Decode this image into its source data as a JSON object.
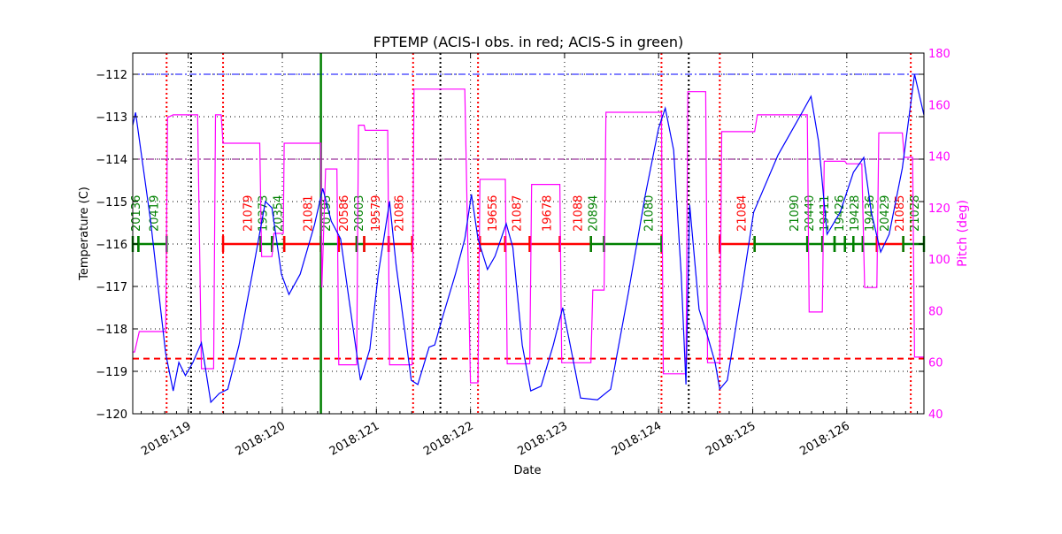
{
  "chart_data": {
    "type": "line",
    "title": "FPTEMP (ACIS-I obs. in red; ACIS-S in green)",
    "xlabel": "Date",
    "ylabel": "Temperature (C)",
    "y2label": "Pitch (deg)",
    "xlim": [
      118.41,
      126.82
    ],
    "ylim": [
      -120,
      -111.5
    ],
    "y2lim": [
      40,
      180
    ],
    "x_ticks": [
      119,
      120,
      121,
      122,
      123,
      124,
      125,
      126
    ],
    "x_tick_labels": [
      "2018:119",
      "2018:120",
      "2018:121",
      "2018:122",
      "2018:123",
      "2018:124",
      "2018:125",
      "2018:126"
    ],
    "y_ticks": [
      -120,
      -119,
      -118,
      -117,
      -116,
      -115,
      -114,
      -113,
      -112
    ],
    "y2_ticks": [
      40,
      60,
      80,
      100,
      120,
      140,
      160,
      180
    ],
    "grid": true,
    "colors": {
      "temperature": "#0000ff",
      "pitch": "#ff00ff",
      "acis_i": "#ff0000",
      "acis_s": "#008000",
      "limit_high": "#0000ff",
      "limit_mid": "#800080",
      "limit_low": "#ff0000",
      "right_axis": "#ff00ff"
    },
    "hlines": [
      {
        "y": -112,
        "style": "dashdot",
        "color": "#0000ff"
      },
      {
        "y": -114,
        "style": "dashdot",
        "color": "#800080"
      },
      {
        "y": -118.7,
        "style": "dashed",
        "color": "#ff0000"
      }
    ],
    "vlines": [
      {
        "x": 118.77,
        "color": "#ff0000",
        "style": "dotted"
      },
      {
        "x": 119.37,
        "color": "#ff0000",
        "style": "dotted"
      },
      {
        "x": 121.39,
        "color": "#ff0000",
        "style": "dotted"
      },
      {
        "x": 122.08,
        "color": "#ff0000",
        "style": "dotted"
      },
      {
        "x": 124.03,
        "color": "#ff0000",
        "style": "dotted"
      },
      {
        "x": 124.65,
        "color": "#ff0000",
        "style": "dotted"
      },
      {
        "x": 126.68,
        "color": "#ff0000",
        "style": "dotted"
      },
      {
        "x": 119.03,
        "color": "#000000",
        "style": "dotted"
      },
      {
        "x": 121.68,
        "color": "#000000",
        "style": "dotted"
      },
      {
        "x": 124.32,
        "color": "#000000",
        "style": "dotted"
      },
      {
        "x": 120.41,
        "color": "#008000",
        "style": "solid"
      }
    ],
    "temperature": [
      [
        118.41,
        -113.2
      ],
      [
        118.44,
        -112.9
      ],
      [
        118.6,
        -115.46
      ],
      [
        118.76,
        -118.58
      ],
      [
        118.84,
        -119.46
      ],
      [
        118.9,
        -118.79
      ],
      [
        118.97,
        -119.1
      ],
      [
        119.05,
        -118.79
      ],
      [
        119.14,
        -118.33
      ],
      [
        119.24,
        -119.73
      ],
      [
        119.33,
        -119.52
      ],
      [
        119.42,
        -119.42
      ],
      [
        119.54,
        -118.38
      ],
      [
        119.68,
        -116.71
      ],
      [
        119.82,
        -115.0
      ],
      [
        119.89,
        -115.15
      ],
      [
        119.99,
        -116.71
      ],
      [
        120.07,
        -117.19
      ],
      [
        120.19,
        -116.71
      ],
      [
        120.34,
        -115.56
      ],
      [
        120.43,
        -114.69
      ],
      [
        120.52,
        -115.46
      ],
      [
        120.62,
        -115.88
      ],
      [
        120.71,
        -117.33
      ],
      [
        120.83,
        -119.21
      ],
      [
        120.93,
        -118.48
      ],
      [
        121.02,
        -116.71
      ],
      [
        121.14,
        -115.0
      ],
      [
        121.21,
        -116.5
      ],
      [
        121.37,
        -119.21
      ],
      [
        121.44,
        -119.31
      ],
      [
        121.56,
        -118.43
      ],
      [
        121.62,
        -118.38
      ],
      [
        121.7,
        -117.75
      ],
      [
        121.84,
        -116.71
      ],
      [
        121.94,
        -115.88
      ],
      [
        122.01,
        -114.83
      ],
      [
        122.08,
        -115.88
      ],
      [
        122.18,
        -116.6
      ],
      [
        122.26,
        -116.29
      ],
      [
        122.38,
        -115.52
      ],
      [
        122.45,
        -116.08
      ],
      [
        122.55,
        -118.38
      ],
      [
        122.64,
        -119.46
      ],
      [
        122.75,
        -119.35
      ],
      [
        122.88,
        -118.38
      ],
      [
        122.98,
        -117.5
      ],
      [
        123.06,
        -118.38
      ],
      [
        123.17,
        -119.63
      ],
      [
        123.35,
        -119.67
      ],
      [
        123.49,
        -119.42
      ],
      [
        123.68,
        -117.13
      ],
      [
        123.86,
        -114.83
      ],
      [
        124.0,
        -113.27
      ],
      [
        124.07,
        -112.8
      ],
      [
        124.16,
        -113.79
      ],
      [
        124.24,
        -116.71
      ],
      [
        124.29,
        -119.31
      ],
      [
        124.33,
        -115.08
      ],
      [
        124.43,
        -117.54
      ],
      [
        124.52,
        -118.17
      ],
      [
        124.6,
        -118.79
      ],
      [
        124.65,
        -119.42
      ],
      [
        124.73,
        -119.21
      ],
      [
        124.88,
        -117.13
      ],
      [
        125.01,
        -115.25
      ],
      [
        125.27,
        -113.9
      ],
      [
        125.51,
        -112.96
      ],
      [
        125.62,
        -112.52
      ],
      [
        125.7,
        -113.58
      ],
      [
        125.79,
        -115.77
      ],
      [
        125.93,
        -115.25
      ],
      [
        126.07,
        -114.31
      ],
      [
        126.18,
        -113.96
      ],
      [
        126.26,
        -115.25
      ],
      [
        126.36,
        -116.19
      ],
      [
        126.45,
        -115.77
      ],
      [
        126.59,
        -114.21
      ],
      [
        126.72,
        -112.0
      ],
      [
        126.82,
        -112.96
      ]
    ],
    "pitch": [
      [
        118.41,
        64
      ],
      [
        118.43,
        64
      ],
      [
        118.48,
        71.9
      ],
      [
        118.76,
        71.9
      ],
      [
        118.78,
        155
      ],
      [
        118.84,
        156
      ],
      [
        119.1,
        156
      ],
      [
        119.14,
        57.5
      ],
      [
        119.27,
        57.5
      ],
      [
        119.29,
        156
      ],
      [
        119.35,
        156
      ],
      [
        119.37,
        145
      ],
      [
        119.76,
        145
      ],
      [
        119.78,
        101
      ],
      [
        119.89,
        101
      ],
      [
        119.91,
        110
      ],
      [
        120.01,
        110
      ],
      [
        120.02,
        145
      ],
      [
        120.41,
        145
      ],
      [
        120.42,
        89
      ],
      [
        120.46,
        135
      ],
      [
        120.58,
        135
      ],
      [
        120.6,
        59
      ],
      [
        120.79,
        59
      ],
      [
        120.81,
        152
      ],
      [
        120.87,
        152
      ],
      [
        120.88,
        150
      ],
      [
        121.12,
        150
      ],
      [
        121.14,
        59
      ],
      [
        121.38,
        59
      ],
      [
        121.4,
        166
      ],
      [
        121.94,
        166
      ],
      [
        122.0,
        52
      ],
      [
        122.08,
        52
      ],
      [
        122.1,
        131
      ],
      [
        122.37,
        131
      ],
      [
        122.39,
        59.4
      ],
      [
        122.63,
        59.4
      ],
      [
        122.65,
        129
      ],
      [
        122.95,
        129
      ],
      [
        122.97,
        59.8
      ],
      [
        123.28,
        59.8
      ],
      [
        123.3,
        88
      ],
      [
        123.42,
        88
      ],
      [
        123.44,
        157
      ],
      [
        124.03,
        157
      ],
      [
        124.05,
        55.5
      ],
      [
        124.29,
        55.5
      ],
      [
        124.31,
        165
      ],
      [
        124.5,
        165
      ],
      [
        124.52,
        59.8
      ],
      [
        124.65,
        59.8
      ],
      [
        124.67,
        149.5
      ],
      [
        125.02,
        149.5
      ],
      [
        125.05,
        156
      ],
      [
        125.58,
        156
      ],
      [
        125.6,
        79.5
      ],
      [
        125.74,
        79.5
      ],
      [
        125.76,
        138
      ],
      [
        125.98,
        138
      ],
      [
        126.0,
        137
      ],
      [
        126.16,
        137
      ],
      [
        126.19,
        89
      ],
      [
        126.32,
        89
      ],
      [
        126.34,
        149
      ],
      [
        126.59,
        149
      ],
      [
        126.61,
        139.5
      ],
      [
        126.7,
        139.5
      ],
      [
        126.72,
        62
      ],
      [
        126.82,
        62
      ]
    ],
    "observations_level": -116,
    "observations": [
      {
        "obsid": "20136",
        "instrument": "ACIS-S",
        "start": 118.41,
        "stop": 118.47
      },
      {
        "obsid": "20419",
        "instrument": "ACIS-S",
        "start": 118.47,
        "stop": 118.77
      },
      {
        "obsid": "21079",
        "instrument": "ACIS-I",
        "start": 119.37,
        "stop": 119.77
      },
      {
        "obsid": "19373",
        "instrument": "ACIS-S",
        "start": 119.77,
        "stop": 119.89
      },
      {
        "obsid": "20354",
        "instrument": "ACIS-S",
        "start": 119.89,
        "stop": 120.02
      },
      {
        "obsid": "21081",
        "instrument": "ACIS-I",
        "start": 120.02,
        "stop": 120.41
      },
      {
        "obsid": "20195",
        "instrument": "ACIS-S",
        "start": 120.41,
        "stop": 120.6
      },
      {
        "obsid": "20586",
        "instrument": "ACIS-I",
        "start": 120.6,
        "stop": 120.79
      },
      {
        "obsid": "20603",
        "instrument": "ACIS-S",
        "start": 120.79,
        "stop": 120.87
      },
      {
        "obsid": "19579",
        "instrument": "ACIS-I",
        "start": 120.87,
        "stop": 121.13
      },
      {
        "obsid": "21086",
        "instrument": "ACIS-I",
        "start": 121.13,
        "stop": 121.38
      },
      {
        "obsid": "19656",
        "instrument": "ACIS-I",
        "start": 122.1,
        "stop": 122.37
      },
      {
        "obsid": "21087",
        "instrument": "ACIS-I",
        "start": 122.37,
        "stop": 122.63
      },
      {
        "obsid": "19678",
        "instrument": "ACIS-I",
        "start": 122.63,
        "stop": 122.95
      },
      {
        "obsid": "21088",
        "instrument": "ACIS-I",
        "start": 122.95,
        "stop": 123.28
      },
      {
        "obsid": "20894",
        "instrument": "ACIS-S",
        "start": 123.28,
        "stop": 123.42
      },
      {
        "obsid": "21080",
        "instrument": "ACIS-S",
        "start": 123.42,
        "stop": 124.03
      },
      {
        "obsid": "21084",
        "instrument": "ACIS-I",
        "start": 124.65,
        "stop": 125.02
      },
      {
        "obsid": "21090",
        "instrument": "ACIS-S",
        "start": 125.02,
        "stop": 125.58
      },
      {
        "obsid": "20440",
        "instrument": "ACIS-S",
        "start": 125.58,
        "stop": 125.74
      },
      {
        "obsid": "19411",
        "instrument": "ACIS-S",
        "start": 125.74,
        "stop": 125.87
      },
      {
        "obsid": "19426",
        "instrument": "ACIS-S",
        "start": 125.87,
        "stop": 125.98
      },
      {
        "obsid": "19428",
        "instrument": "ACIS-S",
        "start": 125.98,
        "stop": 126.07
      },
      {
        "obsid": "19436",
        "instrument": "ACIS-S",
        "start": 126.07,
        "stop": 126.17
      },
      {
        "obsid": "20429",
        "instrument": "ACIS-S",
        "start": 126.17,
        "stop": 126.32
      },
      {
        "obsid": "21085",
        "instrument": "ACIS-I",
        "start": 126.32,
        "stop": 126.6
      },
      {
        "obsid": "21028",
        "instrument": "ACIS-S",
        "start": 126.6,
        "stop": 126.82
      }
    ]
  }
}
